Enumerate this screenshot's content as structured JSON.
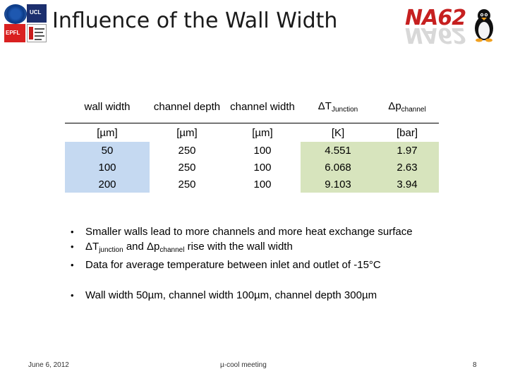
{
  "title": "Influence of the Wall Width",
  "logos": {
    "ucl_text": "UCL",
    "epfl_text": "EPFL",
    "na62_text": "NA62"
  },
  "table": {
    "headers": [
      {
        "main": "wall width",
        "sub": ""
      },
      {
        "main": "channel depth",
        "sub": ""
      },
      {
        "main": "channel width",
        "sub": ""
      },
      {
        "main": "ΔT",
        "sub": "Junction"
      },
      {
        "main": "Δp",
        "sub": "channel"
      }
    ],
    "units": [
      "[µm]",
      "[µm]",
      "[µm]",
      "[K]",
      "[bar]"
    ],
    "rows": [
      [
        "50",
        "250",
        "100",
        "4.551",
        "1.97"
      ],
      [
        "100",
        "250",
        "100",
        "6.068",
        "2.63"
      ],
      [
        "200",
        "250",
        "100",
        "9.103",
        "3.94"
      ]
    ]
  },
  "bullets": {
    "b1": "Smaller walls lead to more channels and more heat exchange surface",
    "b2_t": "ΔT",
    "b2_t_sub": "junction",
    "b2_and": " and Δp",
    "b2_p_sub": "channel",
    "b2_rest": " rise with the wall width",
    "b3": "Data for average temperature between inlet and outlet of -15°C",
    "b4": "Wall width 50µm, channel width 100µm, channel depth 300µm",
    "marker": "•"
  },
  "footer": {
    "date": "June 6, 2012",
    "center": "µ-cool meeting",
    "page": "8"
  }
}
